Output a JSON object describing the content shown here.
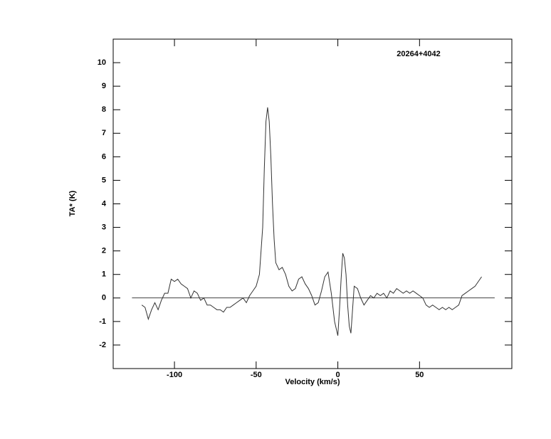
{
  "chart_data": {
    "type": "line",
    "annotation": "20264+4042",
    "x_label": "Velocity (km/s)",
    "y_label": "TA* (K)",
    "xlim": [
      -137.5,
      106.5
    ],
    "ylim": [
      -3,
      11
    ],
    "xticks": [
      -100,
      -50,
      0,
      50
    ],
    "yticks": [
      -2,
      -1,
      0,
      1,
      2,
      3,
      4,
      5,
      6,
      7,
      8,
      9,
      10
    ],
    "baseline": {
      "y": 0,
      "x": [
        -126,
        96
      ]
    },
    "color": "#333333",
    "x": [
      -120,
      -118,
      -116,
      -114,
      -112,
      -110,
      -108,
      -106,
      -104,
      -102,
      -100,
      -98,
      -96,
      -94,
      -92,
      -90,
      -88,
      -86,
      -84,
      -82,
      -80,
      -78,
      -76,
      -74,
      -72,
      -70,
      -68,
      -66,
      -64,
      -62,
      -60,
      -58,
      -56,
      -54,
      -52,
      -50,
      -48,
      -46,
      -45,
      -44,
      -43,
      -42,
      -41,
      -40,
      -39,
      -38,
      -36,
      -34,
      -32,
      -30,
      -28,
      -26,
      -24,
      -22,
      -20,
      -18,
      -16,
      -14,
      -12,
      -10,
      -8,
      -6,
      -4,
      -2,
      0,
      1,
      2,
      3,
      4,
      5,
      6,
      7,
      8,
      9,
      10,
      12,
      14,
      16,
      18,
      20,
      22,
      24,
      26,
      28,
      30,
      32,
      34,
      36,
      38,
      40,
      42,
      44,
      46,
      48,
      50,
      52,
      54,
      56,
      58,
      60,
      62,
      64,
      66,
      68,
      70,
      72,
      74,
      76,
      78,
      80,
      82,
      84,
      86,
      88
    ],
    "values": [
      -0.3,
      -0.4,
      -0.9,
      -0.5,
      -0.2,
      -0.5,
      -0.1,
      0.2,
      0.2,
      0.8,
      0.7,
      0.8,
      0.6,
      0.5,
      0.4,
      0.0,
      0.3,
      0.2,
      -0.1,
      0.0,
      -0.3,
      -0.3,
      -0.4,
      -0.5,
      -0.5,
      -0.6,
      -0.4,
      -0.4,
      -0.3,
      -0.2,
      -0.1,
      0.0,
      -0.2,
      0.1,
      0.3,
      0.5,
      1.0,
      3.0,
      5.5,
      7.5,
      8.1,
      7.5,
      6.0,
      4.0,
      2.5,
      1.5,
      1.2,
      1.3,
      1.0,
      0.5,
      0.3,
      0.4,
      0.8,
      0.9,
      0.6,
      0.4,
      0.1,
      -0.3,
      -0.2,
      0.3,
      0.9,
      1.1,
      0.2,
      -1.0,
      -1.6,
      -0.5,
      0.8,
      1.9,
      1.7,
      1.0,
      -0.3,
      -1.2,
      -1.5,
      -0.5,
      0.5,
      0.4,
      0.0,
      -0.3,
      -0.1,
      0.1,
      0.0,
      0.2,
      0.1,
      0.2,
      0.0,
      0.3,
      0.2,
      0.4,
      0.3,
      0.2,
      0.3,
      0.2,
      0.3,
      0.2,
      0.1,
      0.0,
      -0.3,
      -0.4,
      -0.3,
      -0.4,
      -0.5,
      -0.4,
      -0.5,
      -0.4,
      -0.5,
      -0.4,
      -0.3,
      0.1,
      0.2,
      0.3,
      0.4,
      0.5,
      0.7,
      0.9
    ]
  }
}
